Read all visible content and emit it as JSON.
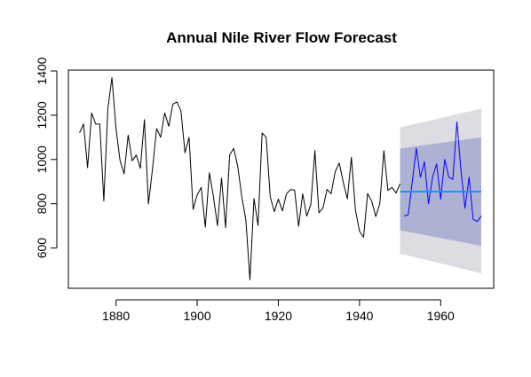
{
  "chart_data": {
    "type": "line",
    "title": "Annual Nile River Flow Forecast",
    "xlabel": "",
    "ylabel": "",
    "xlim": [
      1871,
      1970
    ],
    "ylim": [
      450,
      1400
    ],
    "x_ticks": [
      1880,
      1900,
      1920,
      1940,
      1960
    ],
    "y_ticks": [
      600,
      800,
      1000,
      1200,
      1400
    ],
    "grid": false,
    "legend": "none",
    "series": [
      {
        "role": "observed",
        "color": "#000000",
        "x": [
          1871,
          1872,
          1873,
          1874,
          1875,
          1876,
          1877,
          1878,
          1879,
          1880,
          1881,
          1882,
          1883,
          1884,
          1885,
          1886,
          1887,
          1888,
          1889,
          1890,
          1891,
          1892,
          1893,
          1894,
          1895,
          1896,
          1897,
          1898,
          1899,
          1900,
          1901,
          1902,
          1903,
          1904,
          1905,
          1906,
          1907,
          1908,
          1909,
          1910,
          1911,
          1912,
          1913,
          1914,
          1915,
          1916,
          1917,
          1918,
          1919,
          1920,
          1921,
          1922,
          1923,
          1924,
          1925,
          1926,
          1927,
          1928,
          1929,
          1930,
          1931,
          1932,
          1933,
          1934,
          1935,
          1936,
          1937,
          1938,
          1939,
          1940,
          1941,
          1942,
          1943,
          1944,
          1945,
          1946,
          1947,
          1948,
          1949,
          1950
        ],
        "values": [
          1120,
          1160,
          963,
          1210,
          1160,
          1160,
          813,
          1230,
          1370,
          1140,
          995,
          935,
          1110,
          994,
          1020,
          960,
          1180,
          799,
          958,
          1140,
          1100,
          1210,
          1150,
          1250,
          1260,
          1220,
          1030,
          1100,
          774,
          840,
          874,
          694,
          940,
          833,
          701,
          916,
          692,
          1020,
          1050,
          969,
          831,
          726,
          456,
          824,
          702,
          1120,
          1100,
          832,
          764,
          821,
          768,
          845,
          864,
          862,
          698,
          845,
          744,
          796,
          1040,
          759,
          781,
          865,
          845,
          944,
          984,
          897,
          822,
          1010,
          771,
          676,
          649,
          846,
          812,
          742,
          801,
          1040,
          860,
          874,
          848,
          890
        ]
      },
      {
        "role": "simulated",
        "color": "#0000ff",
        "x": [
          1951,
          1952,
          1953,
          1954,
          1955,
          1956,
          1957,
          1958,
          1959,
          1960,
          1961,
          1962,
          1963,
          1964,
          1965,
          1966,
          1967,
          1968,
          1969,
          1970
        ],
        "values": [
          745,
          750,
          900,
          1050,
          920,
          990,
          800,
          920,
          980,
          820,
          1000,
          920,
          910,
          1170,
          950,
          780,
          920,
          730,
          720,
          745
        ]
      },
      {
        "role": "forecast-mean",
        "color": "#1e90ff",
        "x": [
          1950,
          1970
        ],
        "values": [
          855,
          855
        ]
      }
    ],
    "bands": [
      {
        "level": "95%",
        "color": "#dcdce3",
        "x": [
          1950,
          1970
        ],
        "upper": [
          1145,
          1230
        ],
        "lower": [
          575,
          485
        ]
      },
      {
        "level": "80%",
        "color": "#adb1d4",
        "x": [
          1950,
          1970
        ],
        "upper": [
          1050,
          1100
        ],
        "lower": [
          680,
          610
        ]
      }
    ]
  }
}
